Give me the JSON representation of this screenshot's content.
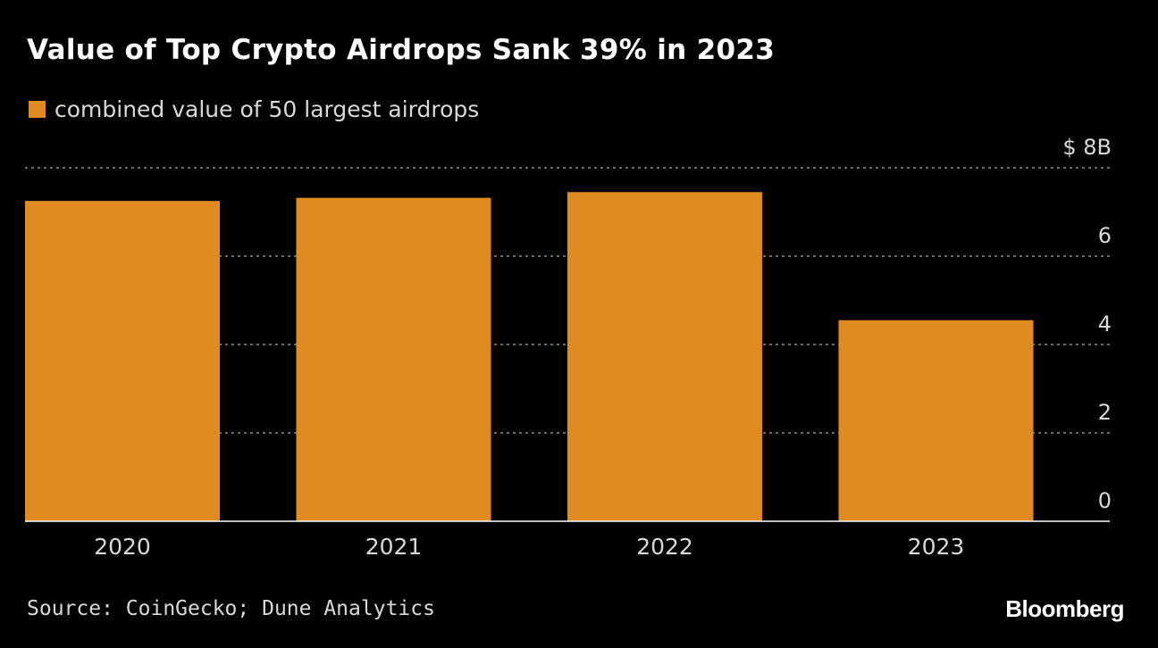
{
  "title": "Value of Top Crypto Airdrops Sank 39% in 2023",
  "legend": {
    "label": "combined value of 50 largest airdrops",
    "color": "#df8b22"
  },
  "source": "Source: CoinGecko; Dune Analytics",
  "brand": "Bloomberg",
  "chart_data": {
    "type": "bar",
    "categories": [
      "2020",
      "2021",
      "2022",
      "2023"
    ],
    "series": [
      {
        "name": "combined value of 50 largest airdrops",
        "values": [
          7.25,
          7.32,
          7.45,
          4.55
        ],
        "color": "#df8b22"
      }
    ],
    "ylim": [
      0,
      8
    ],
    "y_ticks": [
      {
        "value": 8,
        "label": "$ 8B"
      },
      {
        "value": 6,
        "label": "6"
      },
      {
        "value": 4,
        "label": "4"
      },
      {
        "value": 2,
        "label": "2"
      },
      {
        "value": 0,
        "label": "0"
      }
    ],
    "y_axis_position": "right",
    "grid": true,
    "grid_style": "dotted",
    "legend_placement": "top-left",
    "xlabel": "",
    "ylabel": ""
  }
}
